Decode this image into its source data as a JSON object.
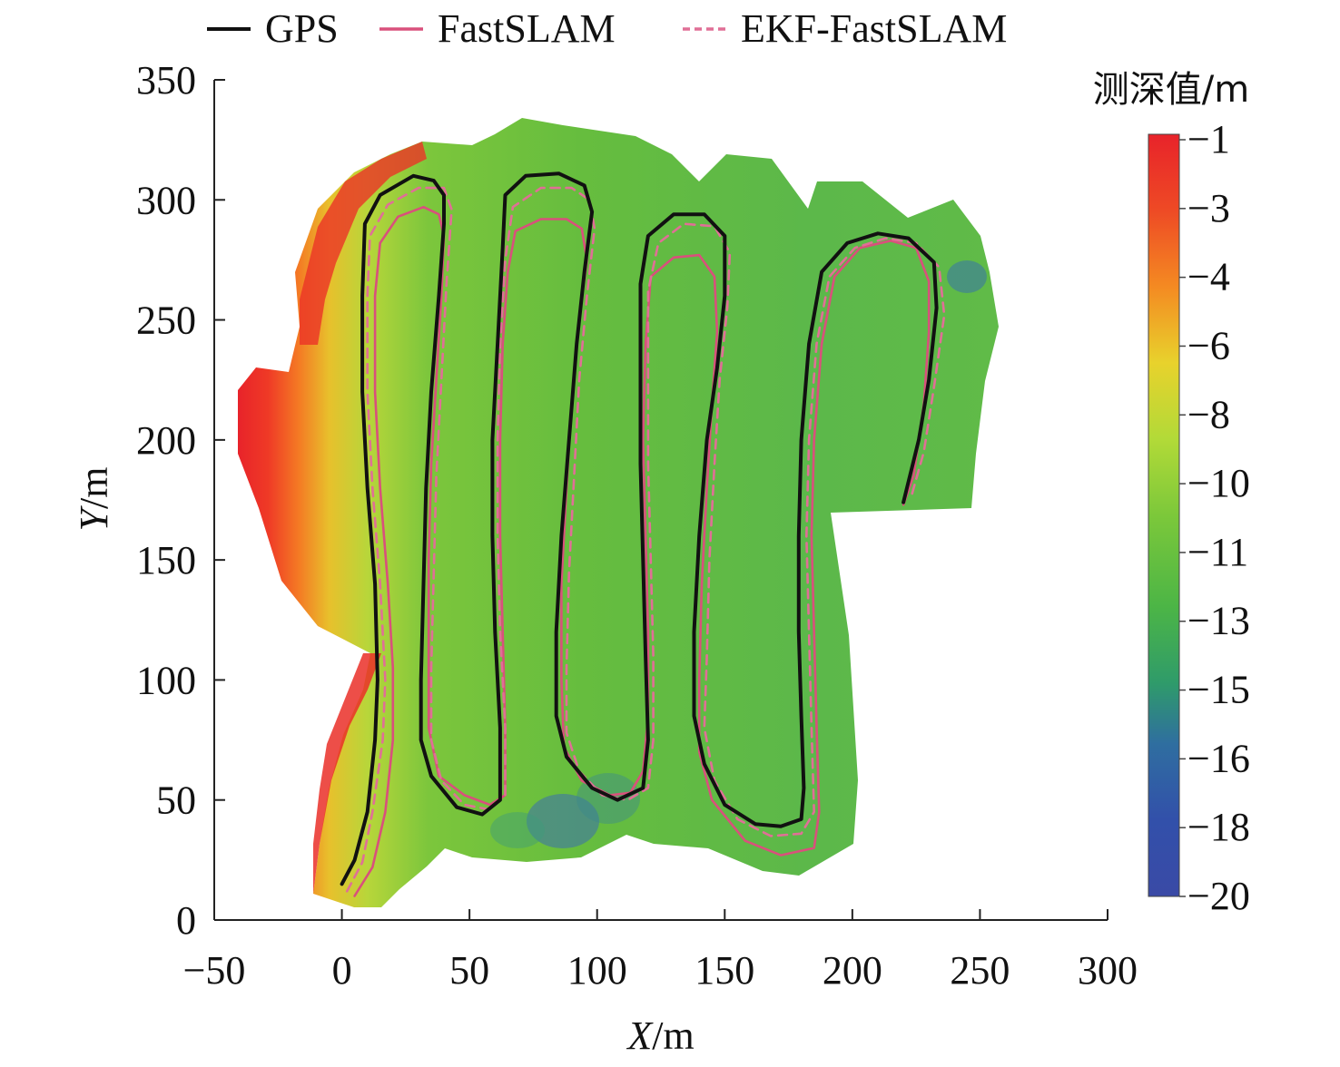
{
  "chart_data": {
    "type": "line",
    "xlabel": {
      "var": "X",
      "unit": "/m"
    },
    "ylabel": {
      "var": "Y",
      "unit": "/m"
    },
    "xlim": [
      -50,
      300
    ],
    "ylim": [
      0,
      350
    ],
    "xticks": [
      "−50",
      "0",
      "50",
      "100",
      "150",
      "200",
      "250",
      "300"
    ],
    "yticks": [
      "0",
      "50",
      "100",
      "150",
      "200",
      "250",
      "300",
      "350"
    ],
    "grid": false,
    "legend": {
      "placement": "top",
      "entries": [
        "GPS",
        "FastSLAM",
        "EKF-FastSLAM"
      ]
    },
    "colorbar": {
      "title": "测深值/m",
      "labels": [
        "−1",
        "−3",
        "−4",
        "−6",
        "−8",
        "−10",
        "−11",
        "−13",
        "−15",
        "−16",
        "−18",
        "−20"
      ],
      "colors": [
        "#e8232a",
        "#ef5a24",
        "#f48a22",
        "#e6c52a",
        "#c8e03a",
        "#86cc3a",
        "#5cbd3c",
        "#3fae56",
        "#2f8f7a",
        "#2f5fae",
        "#3149a8",
        "#3a4aa6"
      ]
    },
    "series": [
      {
        "name": "GPS",
        "color": "#111111",
        "dash": "solid",
        "points": [
          [
            0,
            15
          ],
          [
            5,
            25
          ],
          [
            10,
            45
          ],
          [
            13,
            75
          ],
          [
            14,
            100
          ],
          [
            13,
            140
          ],
          [
            10,
            180
          ],
          [
            8,
            220
          ],
          [
            8,
            260
          ],
          [
            9,
            290
          ],
          [
            15,
            302
          ],
          [
            28,
            310
          ],
          [
            36,
            308
          ],
          [
            40,
            302
          ],
          [
            40,
            290
          ],
          [
            38,
            260
          ],
          [
            35,
            220
          ],
          [
            33,
            180
          ],
          [
            32,
            140
          ],
          [
            31,
            100
          ],
          [
            31,
            75
          ],
          [
            35,
            60
          ],
          [
            45,
            47
          ],
          [
            55,
            44
          ],
          [
            62,
            50
          ],
          [
            62,
            80
          ],
          [
            60,
            120
          ],
          [
            59,
            160
          ],
          [
            59,
            200
          ],
          [
            61,
            240
          ],
          [
            63,
            280
          ],
          [
            64,
            302
          ],
          [
            72,
            310
          ],
          [
            85,
            311
          ],
          [
            95,
            306
          ],
          [
            98,
            295
          ],
          [
            95,
            270
          ],
          [
            92,
            240
          ],
          [
            89,
            200
          ],
          [
            86,
            160
          ],
          [
            84,
            120
          ],
          [
            84,
            85
          ],
          [
            88,
            68
          ],
          [
            98,
            55
          ],
          [
            108,
            50
          ],
          [
            118,
            55
          ],
          [
            120,
            75
          ],
          [
            119,
            110
          ],
          [
            118,
            150
          ],
          [
            117,
            190
          ],
          [
            117,
            230
          ],
          [
            117,
            265
          ],
          [
            120,
            285
          ],
          [
            130,
            294
          ],
          [
            142,
            294
          ],
          [
            150,
            285
          ],
          [
            150,
            260
          ],
          [
            147,
            230
          ],
          [
            143,
            200
          ],
          [
            140,
            160
          ],
          [
            138,
            120
          ],
          [
            138,
            85
          ],
          [
            142,
            65
          ],
          [
            150,
            48
          ],
          [
            162,
            40
          ],
          [
            172,
            39
          ],
          [
            180,
            42
          ],
          [
            181,
            55
          ],
          [
            180,
            85
          ],
          [
            179,
            120
          ],
          [
            179,
            160
          ],
          [
            180,
            200
          ],
          [
            183,
            240
          ],
          [
            188,
            270
          ],
          [
            198,
            282
          ],
          [
            210,
            286
          ],
          [
            222,
            284
          ],
          [
            232,
            274
          ],
          [
            233,
            255
          ],
          [
            230,
            225
          ],
          [
            226,
            200
          ],
          [
            220,
            174
          ]
        ]
      },
      {
        "name": "FastSLAM",
        "color": "#d9507c",
        "dash": "solid",
        "points": [
          [
            5,
            10
          ],
          [
            12,
            22
          ],
          [
            17,
            45
          ],
          [
            20,
            75
          ],
          [
            20,
            105
          ],
          [
            18,
            140
          ],
          [
            15,
            180
          ],
          [
            13,
            220
          ],
          [
            13,
            260
          ],
          [
            15,
            282
          ],
          [
            22,
            293
          ],
          [
            32,
            297
          ],
          [
            38,
            294
          ],
          [
            40,
            285
          ],
          [
            39,
            260
          ],
          [
            37,
            225
          ],
          [
            35,
            190
          ],
          [
            34,
            150
          ],
          [
            34,
            110
          ],
          [
            34,
            80
          ],
          [
            38,
            60
          ],
          [
            48,
            52
          ],
          [
            58,
            48
          ],
          [
            64,
            52
          ],
          [
            64,
            80
          ],
          [
            63,
            120
          ],
          [
            62,
            160
          ],
          [
            62,
            200
          ],
          [
            63,
            240
          ],
          [
            65,
            270
          ],
          [
            68,
            287
          ],
          [
            78,
            292
          ],
          [
            88,
            292
          ],
          [
            94,
            288
          ],
          [
            96,
            275
          ],
          [
            93,
            250
          ],
          [
            90,
            215
          ],
          [
            88,
            180
          ],
          [
            86,
            140
          ],
          [
            86,
            100
          ],
          [
            87,
            72
          ],
          [
            94,
            58
          ],
          [
            105,
            52
          ],
          [
            113,
            53
          ],
          [
            118,
            62
          ],
          [
            120,
            85
          ],
          [
            120,
            120
          ],
          [
            119,
            160
          ],
          [
            118,
            200
          ],
          [
            119,
            240
          ],
          [
            121,
            268
          ],
          [
            130,
            276
          ],
          [
            140,
            277
          ],
          [
            146,
            268
          ],
          [
            147,
            245
          ],
          [
            145,
            215
          ],
          [
            143,
            180
          ],
          [
            141,
            140
          ],
          [
            140,
            100
          ],
          [
            140,
            70
          ],
          [
            145,
            50
          ],
          [
            158,
            33
          ],
          [
            172,
            27
          ],
          [
            185,
            30
          ],
          [
            187,
            45
          ],
          [
            186,
            80
          ],
          [
            185,
            120
          ],
          [
            184,
            160
          ],
          [
            185,
            200
          ],
          [
            188,
            240
          ],
          [
            193,
            268
          ],
          [
            203,
            280
          ],
          [
            215,
            283
          ],
          [
            225,
            280
          ],
          [
            230,
            266
          ],
          [
            230,
            245
          ],
          [
            228,
            215
          ],
          [
            224,
            185
          ],
          [
            220,
            173
          ]
        ]
      },
      {
        "name": "EKF-FastSLAM",
        "color": "#e06f96",
        "dash": "dashed",
        "points": [
          [
            2,
            12
          ],
          [
            8,
            24
          ],
          [
            12,
            45
          ],
          [
            16,
            75
          ],
          [
            17,
            100
          ],
          [
            15,
            140
          ],
          [
            12,
            180
          ],
          [
            10,
            220
          ],
          [
            10,
            260
          ],
          [
            11,
            285
          ],
          [
            18,
            298
          ],
          [
            30,
            305
          ],
          [
            40,
            305
          ],
          [
            43,
            296
          ],
          [
            41,
            265
          ],
          [
            39,
            225
          ],
          [
            37,
            185
          ],
          [
            36,
            145
          ],
          [
            35,
            105
          ],
          [
            35,
            75
          ],
          [
            39,
            58
          ],
          [
            48,
            48
          ],
          [
            58,
            46
          ],
          [
            64,
            52
          ],
          [
            64,
            80
          ],
          [
            62,
            120
          ],
          [
            61,
            160
          ],
          [
            61,
            200
          ],
          [
            62,
            240
          ],
          [
            64,
            275
          ],
          [
            67,
            297
          ],
          [
            78,
            305
          ],
          [
            90,
            305
          ],
          [
            97,
            300
          ],
          [
            99,
            288
          ],
          [
            96,
            260
          ],
          [
            93,
            225
          ],
          [
            91,
            185
          ],
          [
            89,
            145
          ],
          [
            88,
            105
          ],
          [
            88,
            78
          ],
          [
            93,
            62
          ],
          [
            102,
            52
          ],
          [
            112,
            50
          ],
          [
            120,
            55
          ],
          [
            122,
            75
          ],
          [
            122,
            110
          ],
          [
            121,
            150
          ],
          [
            120,
            190
          ],
          [
            120,
            230
          ],
          [
            120,
            262
          ],
          [
            124,
            282
          ],
          [
            134,
            290
          ],
          [
            146,
            289
          ],
          [
            152,
            278
          ],
          [
            151,
            255
          ],
          [
            148,
            225
          ],
          [
            146,
            190
          ],
          [
            144,
            150
          ],
          [
            143,
            110
          ],
          [
            142,
            80
          ],
          [
            146,
            58
          ],
          [
            155,
            42
          ],
          [
            168,
            35
          ],
          [
            180,
            36
          ],
          [
            185,
            45
          ],
          [
            184,
            80
          ],
          [
            183,
            120
          ],
          [
            182,
            160
          ],
          [
            183,
            200
          ],
          [
            186,
            240
          ],
          [
            191,
            268
          ],
          [
            201,
            280
          ],
          [
            213,
            284
          ],
          [
            225,
            282
          ],
          [
            234,
            272
          ],
          [
            236,
            252
          ],
          [
            232,
            222
          ],
          [
            228,
            195
          ],
          [
            223,
            176
          ]
        ]
      }
    ]
  }
}
